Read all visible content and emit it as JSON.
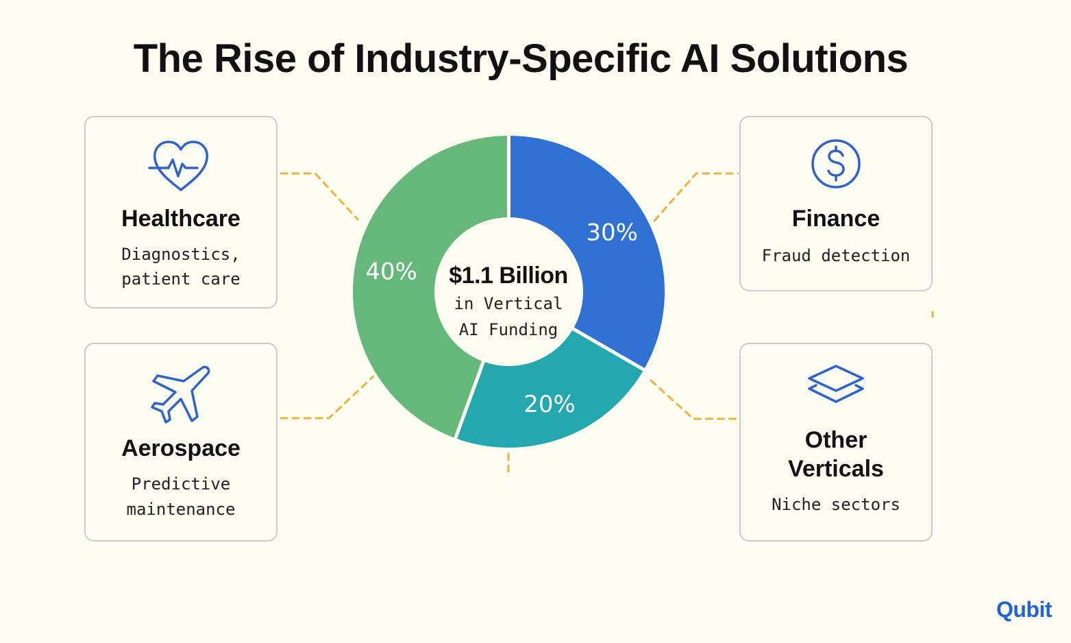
{
  "title": "The Rise of Industry-Specific AI Solutions",
  "center": {
    "amount": "$1.1 Billion",
    "line1": "in Vertical",
    "line2": "AI Funding"
  },
  "cards": {
    "healthcare": {
      "name": "Healthcare",
      "desc_line1": "Diagnostics,",
      "desc_line2": "patient care",
      "icon": "heart-pulse-icon"
    },
    "finance": {
      "name": "Finance",
      "desc_line1": "Fraud detection",
      "icon": "dollar-circle-icon"
    },
    "aerospace": {
      "name": "Aerospace",
      "desc_line1": "Predictive",
      "desc_line2": "maintenance",
      "icon": "airplane-icon"
    },
    "other": {
      "name_line1": "Other",
      "name_line2": "Verticals",
      "desc_line1": "Niche sectors",
      "icon": "layers-icon"
    }
  },
  "chart_data": {
    "type": "pie",
    "variant": "donut",
    "slices": [
      {
        "label": "30%",
        "value": 30,
        "color": "#2f72d4"
      },
      {
        "label": "20%",
        "value": 20,
        "color": "#24a8b0"
      },
      {
        "label": "40%",
        "value": 40,
        "color": "#66b87a"
      }
    ]
  },
  "colors": {
    "background": "#fdfcf0",
    "connector": "#e8b43a",
    "icon": "#2f63c8"
  },
  "logo": {
    "text": "Qubit"
  }
}
